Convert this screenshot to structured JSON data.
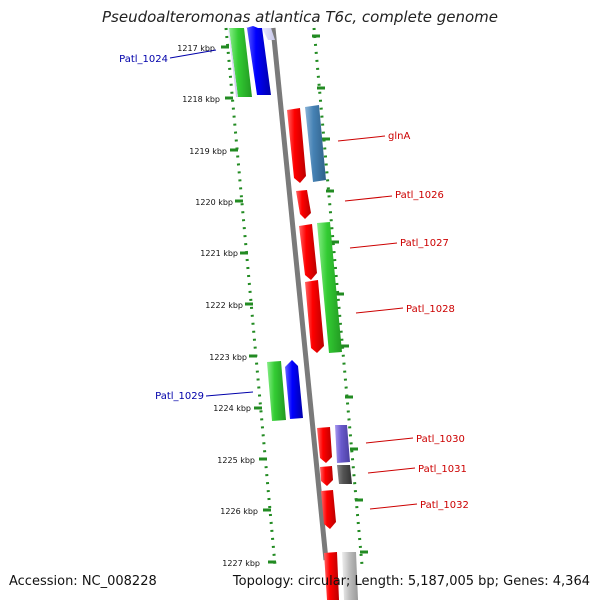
{
  "title": "Pseudoalteromonas atlantica T6c, complete genome",
  "footer": {
    "accession": "Accession: NC_008228",
    "stats": "Topology: circular; Length: 5,187,005 bp; Genes: 4,364"
  },
  "ticks": [
    "1217 kbp",
    "1218 kbp",
    "1219 kbp",
    "1220 kbp",
    "1221 kbp",
    "1222 kbp",
    "1223 kbp",
    "1224 kbp",
    "1225 kbp",
    "1226 kbp",
    "1227 kbp"
  ],
  "genes_left": [
    {
      "label": "Patl_1024",
      "color": "#0000aa"
    },
    {
      "label": "Patl_1029",
      "color": "#0000aa"
    }
  ],
  "genes_right": [
    {
      "label": "glnA",
      "color": "#cc0000"
    },
    {
      "label": "Patl_1026",
      "color": "#cc0000"
    },
    {
      "label": "Patl_1027",
      "color": "#cc0000"
    },
    {
      "label": "Patl_1028",
      "color": "#cc0000"
    },
    {
      "label": "Patl_1030",
      "color": "#cc0000"
    },
    {
      "label": "Patl_1031",
      "color": "#cc0000"
    },
    {
      "label": "Patl_1032",
      "color": "#cc0000"
    }
  ],
  "colors": {
    "backbone": "#808080",
    "dotted_guide": "#228b22",
    "cds_red": "#ff0000",
    "cds_green": "#33cc33",
    "cds_blue": "#0000ff",
    "cds_steelblue": "#4682b4",
    "cds_purple": "#6a5acd",
    "cds_gray": "#555555"
  }
}
